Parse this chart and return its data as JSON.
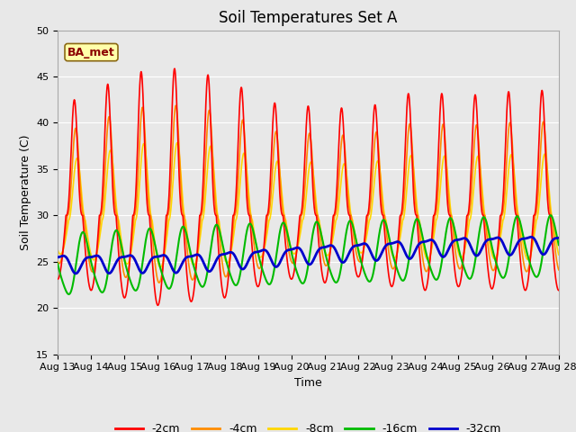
{
  "title": "Soil Temperatures Set A",
  "xlabel": "Time",
  "ylabel": "Soil Temperature (C)",
  "annotation": "BA_met",
  "ylim": [
    15,
    50
  ],
  "xlim": [
    0,
    15
  ],
  "x_tick_labels": [
    "Aug 13",
    "Aug 14",
    "Aug 15",
    "Aug 16",
    "Aug 17",
    "Aug 18",
    "Aug 19",
    "Aug 20",
    "Aug 21",
    "Aug 22",
    "Aug 23",
    "Aug 24",
    "Aug 25",
    "Aug 26",
    "Aug 27",
    "Aug 28"
  ],
  "series_labels": [
    "-2cm",
    "-4cm",
    "-8cm",
    "-16cm",
    "-32cm"
  ],
  "series_colors": [
    "#FF0000",
    "#FF8C00",
    "#FFD700",
    "#00BB00",
    "#0000CC"
  ],
  "line_widths": [
    1.2,
    1.2,
    1.2,
    1.5,
    2.0
  ],
  "plot_bg_color": "#E8E8E8",
  "fig_bg_color": "#E8E8E8",
  "title_fontsize": 12,
  "axis_fontsize": 9,
  "tick_fontsize": 8,
  "legend_fontsize": 9,
  "n_points": 1440,
  "days": 15
}
